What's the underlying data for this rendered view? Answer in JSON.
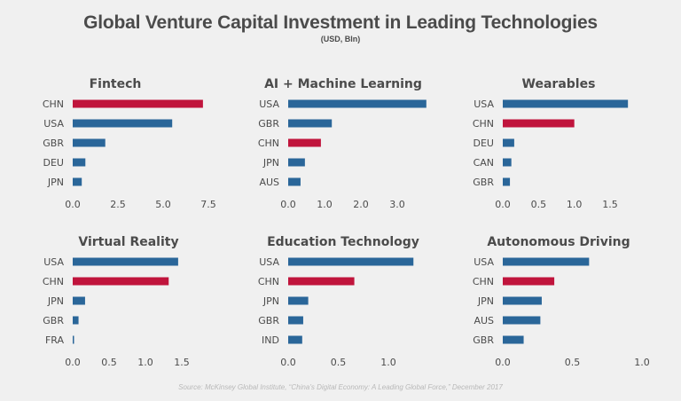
{
  "header": {
    "title": "Global Venture Capital Investment in Leading Technologies",
    "subtitle": "(USD, Bln)"
  },
  "footer": {
    "source": "Source: McKinsey Global Institute, “China’s Digital Economy: A Leading Global Force,” December 2017"
  },
  "colors": {
    "china": "#c0143c",
    "other": "#2a6699",
    "text": "#4b4b4b",
    "background": "#f0f0f0"
  },
  "chart_data": [
    {
      "type": "bar",
      "orientation": "horizontal",
      "title": "Fintech",
      "categories": [
        "CHN",
        "USA",
        "GBR",
        "DEU",
        "JPN"
      ],
      "values": [
        7.2,
        5.5,
        1.8,
        0.7,
        0.5
      ],
      "highlight": "CHN",
      "xticks": [
        "0.0",
        "2.5",
        "5.0",
        "7.5"
      ],
      "xlim": [
        0,
        7.5
      ],
      "xlabel": "",
      "ylabel": "",
      "grid": false
    },
    {
      "type": "bar",
      "orientation": "horizontal",
      "title": "AI + Machine Learning",
      "categories": [
        "USA",
        "GBR",
        "CHN",
        "JPN",
        "AUS"
      ],
      "values": [
        3.8,
        1.2,
        0.9,
        0.46,
        0.34
      ],
      "highlight": "CHN",
      "xticks": [
        "0.0",
        "1.0",
        "2.0",
        "3.0"
      ],
      "xlim": [
        0,
        3.0
      ],
      "xlabel": "",
      "ylabel": "",
      "grid": false
    },
    {
      "type": "bar",
      "orientation": "horizontal",
      "title": "Wearables",
      "categories": [
        "USA",
        "CHN",
        "DEU",
        "CAN",
        "GBR"
      ],
      "values": [
        1.75,
        1.0,
        0.16,
        0.12,
        0.1
      ],
      "highlight": "CHN",
      "xticks": [
        "0.0",
        "0.5",
        "1.0",
        "1.5"
      ],
      "xlim": [
        0,
        1.5
      ],
      "xlabel": "",
      "ylabel": "",
      "grid": false
    },
    {
      "type": "bar",
      "orientation": "horizontal",
      "title": "Virtual Reality",
      "categories": [
        "USA",
        "CHN",
        "JPN",
        "GBR",
        "FRA"
      ],
      "values": [
        1.45,
        1.32,
        0.17,
        0.08,
        0.01
      ],
      "highlight": "CHN",
      "xticks": [
        "0.0",
        "0.5",
        "1.0",
        "1.5"
      ],
      "xlim": [
        0,
        1.5
      ],
      "xlabel": "",
      "ylabel": "",
      "grid": false
    },
    {
      "type": "bar",
      "orientation": "horizontal",
      "title": "Education Technology",
      "categories": [
        "USA",
        "CHN",
        "JPN",
        "GBR",
        "IND"
      ],
      "values": [
        1.25,
        0.66,
        0.2,
        0.15,
        0.14
      ],
      "highlight": "CHN",
      "xticks": [
        "0.0",
        "0.5",
        "1.0"
      ],
      "xlim": [
        0,
        1.0
      ],
      "xlabel": "",
      "ylabel": "",
      "grid": false
    },
    {
      "type": "bar",
      "orientation": "horizontal",
      "title": "Autonomous Driving",
      "categories": [
        "USA",
        "CHN",
        "JPN",
        "AUS",
        "GBR"
      ],
      "values": [
        0.62,
        0.37,
        0.28,
        0.27,
        0.15
      ],
      "highlight": "CHN",
      "xticks": [
        "0.0",
        "0.5",
        "1.0"
      ],
      "xlim": [
        0,
        1.0
      ],
      "xlabel": "",
      "ylabel": "",
      "grid": false
    }
  ]
}
